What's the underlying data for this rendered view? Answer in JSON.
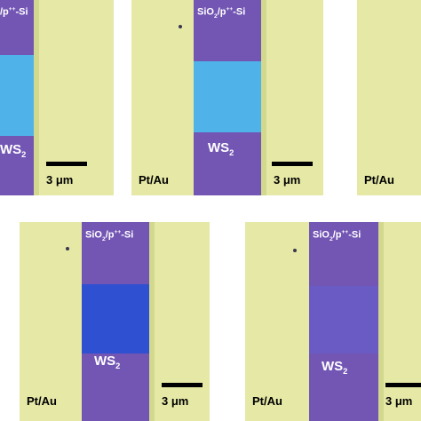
{
  "labels": {
    "substrate_base": "SiO",
    "substrate_sub": "2",
    "substrate_mid": "/p",
    "substrate_sup": "++",
    "substrate_end": "-Si",
    "substrate_partial_panel1": "/p",
    "substrate_partial_sup": "++",
    "substrate_partial_end": "-Si",
    "ws_base": "WS",
    "ws_sub": "2",
    "electrode": "Pt/Au",
    "scale_bar": "3 μm"
  },
  "colors": {
    "background": "#e6e9a6",
    "channel": "#7356b4",
    "flake_light": "#4fb3ea",
    "flake_mid": "#3f8fe0",
    "flake_dark": "#2e4fd0",
    "flake_faint": "#6a5ac4"
  }
}
